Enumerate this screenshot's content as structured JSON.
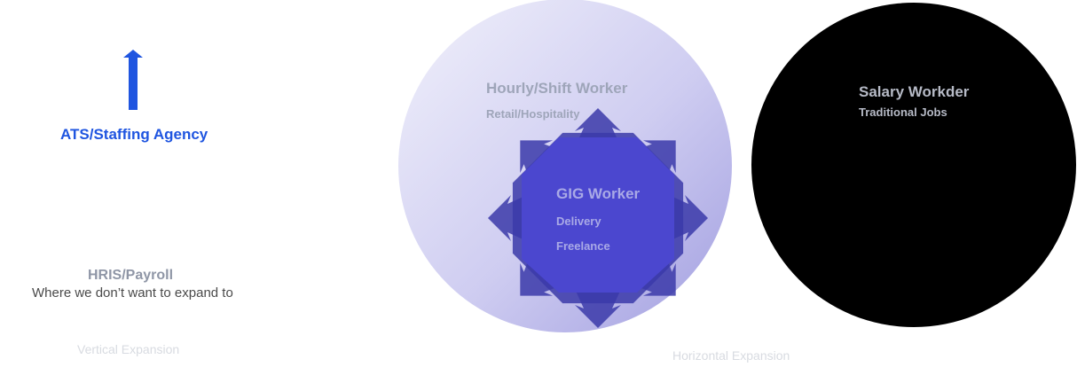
{
  "left_panel": {
    "ats_label": "ATS/Staffing Agency",
    "hris_label": "HRIS/Payroll",
    "hris_description": "Where we don’t want to expand to",
    "vertical_expansion": "Vertical Expansion"
  },
  "diagram": {
    "hourly_title": "Hourly/Shift Worker",
    "hourly_subtitle": "Retail/Hospitality",
    "gig_title": "GIG Worker",
    "gig_items": [
      "Delivery",
      "Freelance"
    ],
    "salary_title": "Salary Workder",
    "salary_subtitle": "Traditional Jobs",
    "horizontal_expansion": "Horizontal Expansion"
  },
  "colors": {
    "accent_blue": "#1f55e0",
    "hourly_circle_light": "#eeeefa",
    "hourly_circle_dark": "#a9a6e4",
    "gig_burst": "#3a3aa8",
    "gig_core": "#4a46cc",
    "salary_circle": "#000000"
  },
  "icons": {
    "vertical_arrow": "arrow-up-icon",
    "gig_expansion": "expansion-arrows-icon"
  }
}
